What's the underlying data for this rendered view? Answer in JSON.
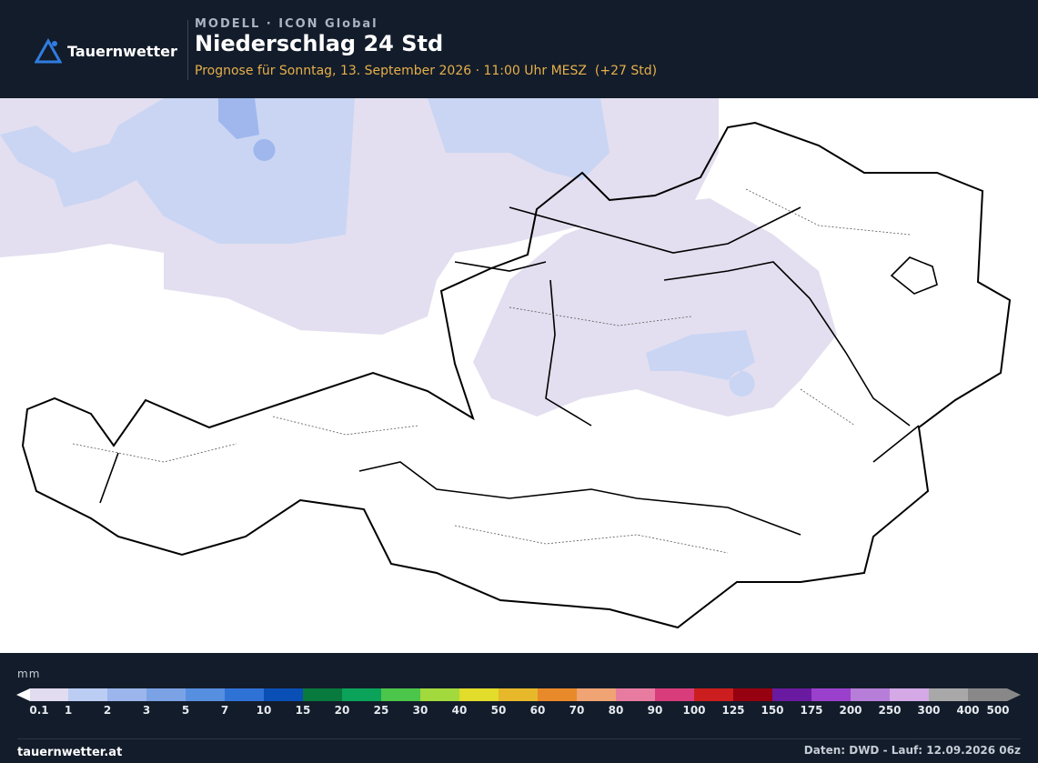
{
  "header": {
    "logo": "Tauernwetter",
    "model": "MODELL · ICON Global",
    "title": "Niederschlag 24 Std",
    "subtitle": "Prognose für Sonntag, 13. September 2026 · 11:00 Uhr MESZ  (+27 Std)"
  },
  "legend": {
    "unit": "mm",
    "labels": [
      0.1,
      1,
      2,
      3,
      5,
      7,
      10,
      15,
      20,
      25,
      30,
      40,
      50,
      60,
      70,
      80,
      90,
      100,
      125,
      150,
      175,
      200,
      250,
      300,
      400,
      500
    ],
    "colors": [
      "#e2dcf0",
      "#bccdf3",
      "#9cb5ec",
      "#7ca2e6",
      "#568fe0",
      "#2f72d6",
      "#0a4fb5",
      "#087a3d",
      "#0ba35a",
      "#4cc64a",
      "#a2d93c",
      "#e2dc2a",
      "#e6b82a",
      "#e88a2a",
      "#f0a373",
      "#e87ba0",
      "#d83c7b",
      "#cc1e1e",
      "#960010",
      "#6a1aa0",
      "#9a40cc",
      "#b77ed9",
      "#d4a9e6",
      "#a8a8a8",
      "#888888"
    ]
  },
  "footer": {
    "site": "tauernwetter.at",
    "source": "Daten: DWD - Lauf: 12.09.2026 06z"
  }
}
